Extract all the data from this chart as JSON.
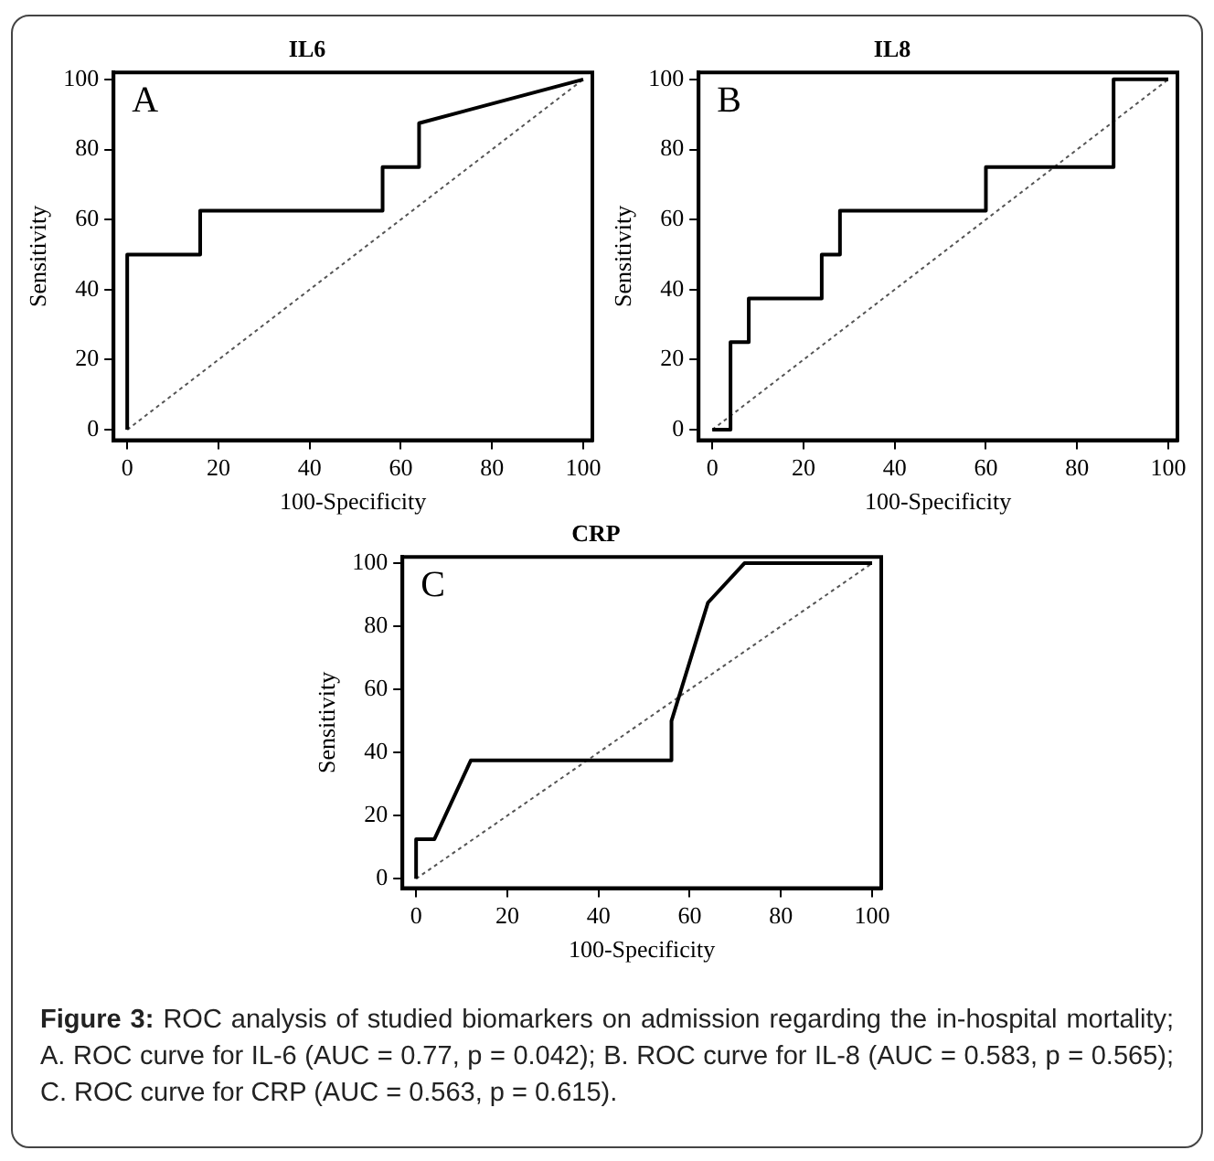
{
  "chart_data": [
    {
      "type": "line",
      "title": "IL6",
      "xlabel": "100-Specificity",
      "ylabel": "Sensitivity",
      "annotations": [
        "A"
      ],
      "xlim": [
        -3,
        102
      ],
      "ylim": [
        -3,
        102
      ],
      "xticks": [
        0,
        20,
        40,
        60,
        80,
        100
      ],
      "yticks": [
        0,
        20,
        40,
        60,
        80,
        100
      ],
      "grid": false,
      "legend": false,
      "marker": "none",
      "series": [
        {
          "color": "#000000",
          "x": [
            0,
            0,
            16,
            16,
            56,
            56,
            64,
            64,
            100
          ],
          "values": [
            0,
            50,
            50,
            62.5,
            62.5,
            75,
            75,
            87.5,
            100
          ],
          "line_style": "solid"
        },
        {
          "color": "#555555",
          "x": [
            0,
            100
          ],
          "values": [
            0,
            100
          ],
          "line_style": "dotted"
        }
      ]
    },
    {
      "type": "line",
      "title": "IL8",
      "xlabel": "100-Specificity",
      "ylabel": "Sensitivity",
      "annotations": [
        "B"
      ],
      "xlim": [
        -3,
        102
      ],
      "ylim": [
        -3,
        102
      ],
      "xticks": [
        0,
        20,
        40,
        60,
        80,
        100
      ],
      "yticks": [
        0,
        20,
        40,
        60,
        80,
        100
      ],
      "grid": false,
      "legend": false,
      "marker": "none",
      "series": [
        {
          "color": "#000000",
          "x": [
            0,
            4,
            4,
            8,
            8,
            24,
            24,
            28,
            28,
            60,
            60,
            88,
            88,
            100
          ],
          "values": [
            0,
            0,
            25,
            25,
            37.5,
            37.5,
            50,
            50,
            62.5,
            62.5,
            75,
            75,
            100,
            100
          ],
          "line_style": "solid"
        },
        {
          "color": "#555555",
          "x": [
            0,
            100
          ],
          "values": [
            0,
            100
          ],
          "line_style": "dotted"
        }
      ]
    },
    {
      "type": "line",
      "title": "CRP",
      "xlabel": "100-Specificity",
      "ylabel": "Sensitivity",
      "annotations": [
        "C",
        "Figure 3:",
        "ROC analysis of studied biomarkers on admission regarding the in-hospital mortality; A. ROC curve for IL-6 (AUC = 0.77,  p = 0.042); B. ROC curve for IL-8 (AUC = 0.583,  p = 0.565); C. ROC curve for CRP (AUC = 0.563,  p = 0.615)."
      ],
      "xlim": [
        -3,
        102
      ],
      "ylim": [
        -3,
        102
      ],
      "xticks": [
        0,
        20,
        40,
        60,
        80,
        100
      ],
      "yticks": [
        0,
        20,
        40,
        60,
        80,
        100
      ],
      "grid": false,
      "legend": false,
      "marker": "none",
      "series": [
        {
          "color": "#000000",
          "x": [
            0,
            0,
            4,
            12,
            56,
            56,
            64,
            72,
            100
          ],
          "values": [
            0,
            12.5,
            12.5,
            37.5,
            37.5,
            50,
            87.5,
            100,
            100
          ],
          "line_style": "solid"
        },
        {
          "color": "#555555",
          "x": [
            0,
            100
          ],
          "values": [
            0,
            100
          ],
          "line_style": "dotted"
        }
      ]
    }
  ]
}
